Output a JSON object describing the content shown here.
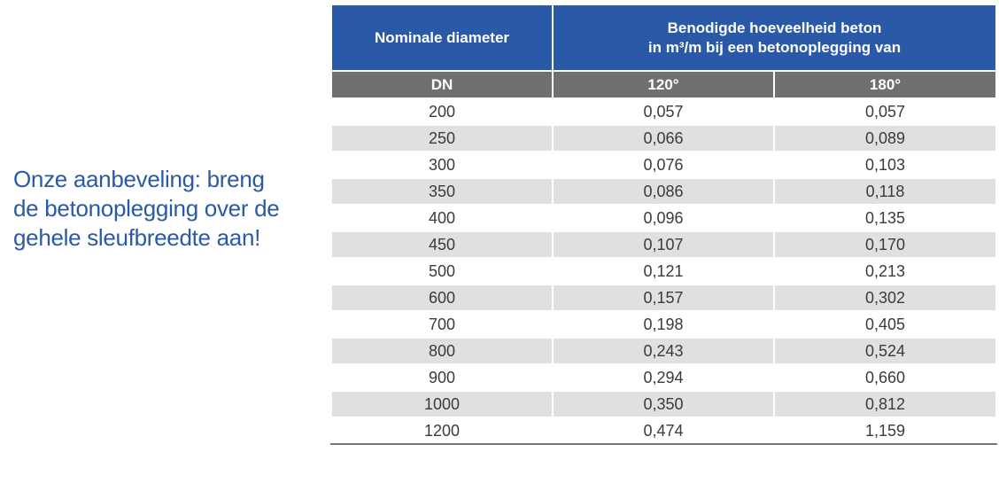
{
  "note": {
    "lines": [
      "Onze aanbeveling: breng",
      "de betonoplegging over de",
      "gehele sleufbreedte aan!"
    ]
  },
  "table": {
    "header": {
      "col1": "Nominale diameter",
      "col23_line1": "Benodigde hoeveelheid beton",
      "col23_line2": "in m³/m bij een betonoplegging van"
    },
    "subheader": {
      "col1": "DN",
      "col2": "120°",
      "col3": "180°"
    },
    "rows": [
      {
        "dn": "200",
        "v120": "0,057",
        "v180": "0,057"
      },
      {
        "dn": "250",
        "v120": "0,066",
        "v180": "0,089"
      },
      {
        "dn": "300",
        "v120": "0,076",
        "v180": "0,103"
      },
      {
        "dn": "350",
        "v120": "0,086",
        "v180": "0,118"
      },
      {
        "dn": "400",
        "v120": "0,096",
        "v180": "0,135"
      },
      {
        "dn": "450",
        "v120": "0,107",
        "v180": "0,170"
      },
      {
        "dn": "500",
        "v120": "0,121",
        "v180": "0,213"
      },
      {
        "dn": "600",
        "v120": "0,157",
        "v180": "0,302"
      },
      {
        "dn": "700",
        "v120": "0,198",
        "v180": "0,405"
      },
      {
        "dn": "800",
        "v120": "0,243",
        "v180": "0,524"
      },
      {
        "dn": "900",
        "v120": "0,294",
        "v180": "0,660"
      },
      {
        "dn": "1000",
        "v120": "0,350",
        "v180": "0,812"
      },
      {
        "dn": "1200",
        "v120": "0,474",
        "v180": "1,159"
      }
    ]
  },
  "colors": {
    "header_blue": "#2A5AA7",
    "subheader_gray": "#707070",
    "row_alt_gray": "#E0E0E0",
    "note_blue": "#2A5AA7",
    "body_text": "#3B3B3B",
    "bottom_border": "#75787B"
  },
  "chart_data": {
    "type": "table",
    "title": "Benodigde hoeveelheid beton in m³/m bij een betonoplegging van",
    "columns": [
      "DN",
      "120°",
      "180°"
    ],
    "rows": [
      [
        "200",
        "0,057",
        "0,057"
      ],
      [
        "250",
        "0,066",
        "0,089"
      ],
      [
        "300",
        "0,076",
        "0,103"
      ],
      [
        "350",
        "0,086",
        "0,118"
      ],
      [
        "400",
        "0,096",
        "0,135"
      ],
      [
        "450",
        "0,107",
        "0,170"
      ],
      [
        "500",
        "0,121",
        "0,213"
      ],
      [
        "600",
        "0,157",
        "0,302"
      ],
      [
        "700",
        "0,198",
        "0,405"
      ],
      [
        "800",
        "0,243",
        "0,524"
      ],
      [
        "900",
        "0,294",
        "0,660"
      ],
      [
        "1000",
        "0,350",
        "0,812"
      ],
      [
        "1200",
        "0,474",
        "1,159"
      ]
    ]
  }
}
